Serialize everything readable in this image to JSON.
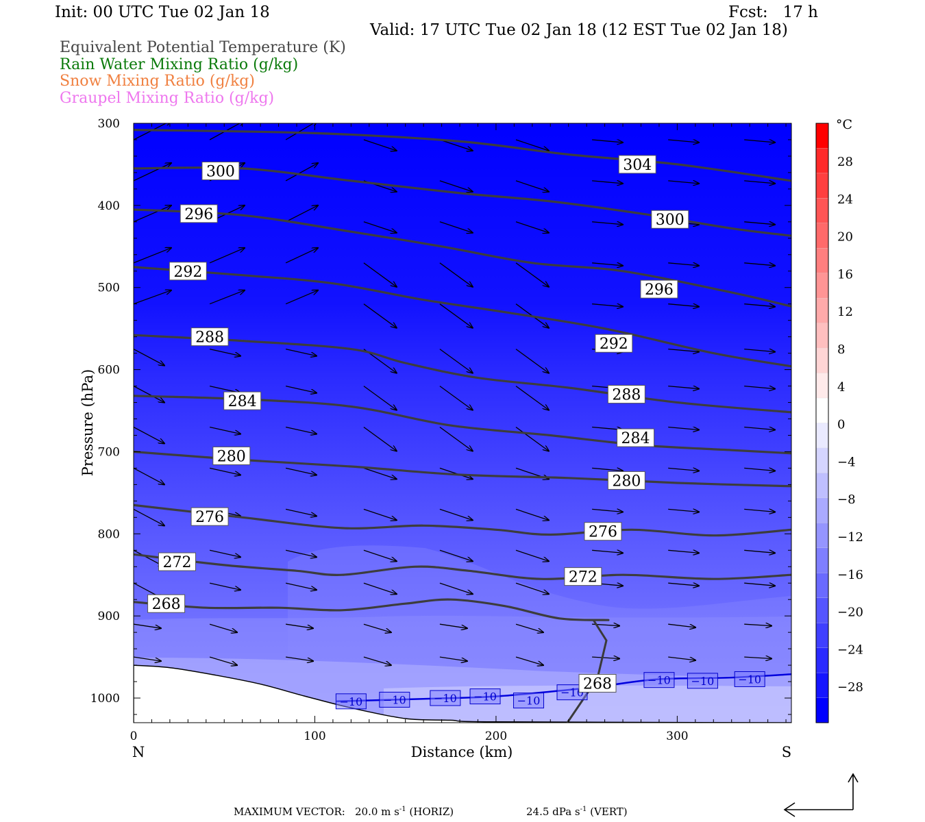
{
  "header": {
    "init": "Init: 00 UTC Tue 02 Jan 18",
    "fcst": "Fcst:   17 h",
    "valid": "Valid: 17 UTC Tue 02 Jan 18 (12 EST Tue 02 Jan 18)"
  },
  "fields": [
    {
      "label": "Equivalent Potential Temperature (K)",
      "color": "#444444"
    },
    {
      "label": "Rain Water Mixing Ratio (g/kg)",
      "color": "#0a7a0a"
    },
    {
      "label": "Snow Mixing Ratio (g/kg)",
      "color": "#f08040"
    },
    {
      "label": "Graupel Mixing Ratio (g/kg)",
      "color": "#ee77ee"
    }
  ],
  "chart_data": {
    "type": "cross-section contour",
    "xlabel": "Distance (km)",
    "ylabel": "Pressure (hPa)",
    "xlim": [
      0,
      363
    ],
    "ylim": [
      1030,
      300
    ],
    "x_ticks": [
      0,
      100,
      200,
      300
    ],
    "y_ticks": [
      300,
      400,
      500,
      600,
      700,
      800,
      900,
      1000
    ],
    "x_end_labels": {
      "left": "N",
      "right": "S"
    },
    "fill_colors": {
      "cold": "#0000ff",
      "warm": "#ff0000"
    },
    "theta_e_contours": [
      {
        "value": 268,
        "points": [
          [
            0,
            883
          ],
          [
            40,
            890
          ],
          [
            80,
            890
          ],
          [
            115,
            893
          ],
          [
            150,
            885
          ],
          [
            175,
            880
          ],
          [
            205,
            888
          ],
          [
            235,
            903
          ],
          [
            262,
            905
          ]
        ]
      },
      {
        "value": 272,
        "points": [
          [
            0,
            825
          ],
          [
            50,
            838
          ],
          [
            90,
            845
          ],
          [
            115,
            850
          ],
          [
            155,
            840
          ],
          [
            185,
            845
          ],
          [
            225,
            855
          ],
          [
            270,
            850
          ],
          [
            320,
            855
          ],
          [
            363,
            850
          ]
        ]
      },
      {
        "value": 276,
        "points": [
          [
            0,
            765
          ],
          [
            60,
            780
          ],
          [
            115,
            793
          ],
          [
            160,
            790
          ],
          [
            200,
            795
          ],
          [
            230,
            801
          ],
          [
            275,
            795
          ],
          [
            320,
            802
          ],
          [
            363,
            795
          ]
        ]
      },
      {
        "value": 280,
        "points": [
          [
            0,
            700
          ],
          [
            60,
            710
          ],
          [
            120,
            718
          ],
          [
            180,
            728
          ],
          [
            240,
            732
          ],
          [
            300,
            738
          ],
          [
            363,
            742
          ]
        ]
      },
      {
        "value": 284,
        "points": [
          [
            0,
            632
          ],
          [
            60,
            636
          ],
          [
            120,
            645
          ],
          [
            175,
            668
          ],
          [
            230,
            680
          ],
          [
            280,
            692
          ],
          [
            330,
            698
          ],
          [
            363,
            702
          ]
        ]
      },
      {
        "value": 288,
        "points": [
          [
            0,
            558
          ],
          [
            60,
            565
          ],
          [
            120,
            575
          ],
          [
            150,
            592
          ],
          [
            190,
            610
          ],
          [
            240,
            622
          ],
          [
            300,
            640
          ],
          [
            363,
            652
          ]
        ]
      },
      {
        "value": 292,
        "points": [
          [
            0,
            475
          ],
          [
            60,
            485
          ],
          [
            110,
            495
          ],
          [
            160,
            515
          ],
          [
            205,
            530
          ],
          [
            260,
            550
          ],
          [
            320,
            580
          ],
          [
            363,
            596
          ]
        ]
      },
      {
        "value": 296,
        "points": [
          [
            0,
            405
          ],
          [
            60,
            412
          ],
          [
            120,
            432
          ],
          [
            170,
            450
          ],
          [
            220,
            470
          ],
          [
            270,
            480
          ],
          [
            330,
            506
          ],
          [
            363,
            523
          ]
        ]
      },
      {
        "value": 300,
        "points": [
          [
            0,
            355
          ],
          [
            60,
            355
          ],
          [
            120,
            370
          ],
          [
            180,
            385
          ],
          [
            230,
            395
          ],
          [
            280,
            410
          ],
          [
            330,
            428
          ],
          [
            363,
            437
          ]
        ]
      },
      {
        "value": 304,
        "points": [
          [
            0,
            308
          ],
          [
            100,
            312
          ],
          [
            180,
            322
          ],
          [
            240,
            338
          ],
          [
            300,
            350
          ],
          [
            363,
            370
          ]
        ]
      }
    ],
    "contour_labels": [
      {
        "text": "268",
        "x": 18,
        "p": 885
      },
      {
        "text": "272",
        "x": 24,
        "p": 834
      },
      {
        "text": "276",
        "x": 42,
        "p": 779
      },
      {
        "text": "280",
        "x": 54,
        "p": 705
      },
      {
        "text": "284",
        "x": 60,
        "p": 638
      },
      {
        "text": "288",
        "x": 42,
        "p": 560
      },
      {
        "text": "292",
        "x": 30,
        "p": 480
      },
      {
        "text": "296",
        "x": 36,
        "p": 410
      },
      {
        "text": "300",
        "x": 48,
        "p": 358
      },
      {
        "text": "304",
        "x": 278,
        "p": 350
      },
      {
        "text": "300",
        "x": 296,
        "p": 417
      },
      {
        "text": "296",
        "x": 290,
        "p": 502
      },
      {
        "text": "292",
        "x": 265,
        "p": 568
      },
      {
        "text": "288",
        "x": 272,
        "p": 630
      },
      {
        "text": "284",
        "x": 277,
        "p": 683
      },
      {
        "text": "280",
        "x": 272,
        "p": 735
      },
      {
        "text": "276",
        "x": 259,
        "p": 797
      },
      {
        "text": "272",
        "x": 248,
        "p": 852
      },
      {
        "text": "268",
        "x": 256,
        "p": 982
      }
    ],
    "iso_minus10": {
      "value": -10,
      "points": [
        [
          112,
          1004
        ],
        [
          160,
          1001
        ],
        [
          200,
          998
        ],
        [
          240,
          990
        ],
        [
          260,
          985
        ],
        [
          290,
          977
        ],
        [
          330,
          975
        ],
        [
          363,
          971
        ]
      ],
      "labels": [
        {
          "text": "-10",
          "x": 120,
          "p": 1004
        },
        {
          "text": "-10",
          "x": 144,
          "p": 1002
        },
        {
          "text": "-10",
          "x": 172,
          "p": 1000
        },
        {
          "text": "-10",
          "x": 194,
          "p": 998
        },
        {
          "text": "-10",
          "x": 218,
          "p": 1003
        },
        {
          "text": "-10",
          "x": 242,
          "p": 993
        },
        {
          "text": "-10",
          "x": 290,
          "p": 978
        },
        {
          "text": "-10",
          "x": 314,
          "p": 979
        },
        {
          "text": "-10",
          "x": 340,
          "p": 977
        }
      ]
    },
    "terrain": [
      [
        0,
        960
      ],
      [
        20,
        963
      ],
      [
        45,
        972
      ],
      [
        70,
        983
      ],
      [
        95,
        998
      ],
      [
        120,
        1012
      ],
      [
        150,
        1025
      ],
      [
        175,
        1027
      ],
      [
        200,
        1029
      ],
      [
        363,
        1030
      ]
    ]
  },
  "colorbar": {
    "unit": "°C",
    "tick_labels": [
      "28",
      "24",
      "20",
      "16",
      "12",
      "8",
      "4",
      "0",
      "−4",
      "−8",
      "−12",
      "−16",
      "−20",
      "−24",
      "−28"
    ],
    "colors": [
      "#ff0000",
      "#ff2a2a",
      "#ff3f3f",
      "#ff5555",
      "#ff6a6a",
      "#ff7f7f",
      "#ff9595",
      "#ffaaaa",
      "#ffbfbf",
      "#ffd5d5",
      "#ffeaea",
      "#ffffff",
      "#eaeaff",
      "#d5d5ff",
      "#bfbfff",
      "#aaaaff",
      "#9595ff",
      "#7f7fff",
      "#6a6aff",
      "#5555ff",
      "#3f3fff",
      "#2a2aff",
      "#1515ff",
      "#0000ff"
    ]
  },
  "footer": {
    "label": "MAXIMUM VECTOR:",
    "horiz_value": "20.0 m s",
    "horiz_exp": "-1",
    "horiz_tag": "(HORIZ)",
    "vert_value": "24.5 dPa s",
    "vert_exp": "-1",
    "vert_tag": "(VERT)"
  }
}
